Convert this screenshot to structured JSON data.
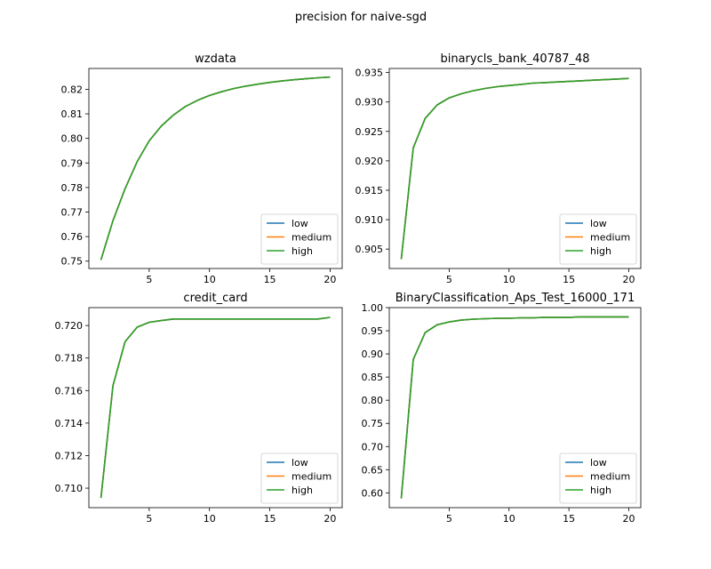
{
  "suptitle": "precision for naive-sgd",
  "series_colors": {
    "low": "#1f77b4",
    "medium": "#ff7f0e",
    "high": "#2ca02c"
  },
  "chart_data": [
    {
      "type": "line",
      "title": "wzdata",
      "x": [
        1,
        2,
        3,
        4,
        5,
        6,
        7,
        8,
        9,
        10,
        11,
        12,
        13,
        14,
        15,
        16,
        17,
        18,
        19,
        20
      ],
      "xlim": [
        0,
        21
      ],
      "xticks": [
        5,
        10,
        15,
        20
      ],
      "ylim": [
        0.747,
        0.8285
      ],
      "yticks": [
        0.75,
        0.76,
        0.77,
        0.78,
        0.79,
        0.8,
        0.81,
        0.82
      ],
      "ytick_labels": [
        "0.75",
        "0.76",
        "0.77",
        "0.78",
        "0.79",
        "0.80",
        "0.81",
        "0.82"
      ],
      "legend": "lower-right",
      "series": [
        {
          "name": "low",
          "values": [
            0.7505,
            0.7665,
            0.7795,
            0.7905,
            0.799,
            0.805,
            0.8095,
            0.813,
            0.8155,
            0.8175,
            0.819,
            0.8203,
            0.8213,
            0.8221,
            0.8228,
            0.8234,
            0.8239,
            0.8243,
            0.8247,
            0.825
          ]
        },
        {
          "name": "medium",
          "values": [
            0.7505,
            0.7665,
            0.7795,
            0.7905,
            0.799,
            0.805,
            0.8095,
            0.813,
            0.8155,
            0.8175,
            0.819,
            0.8203,
            0.8213,
            0.8221,
            0.8228,
            0.8234,
            0.8239,
            0.8243,
            0.8247,
            0.825
          ]
        },
        {
          "name": "high",
          "values": [
            0.7505,
            0.7665,
            0.7795,
            0.7905,
            0.799,
            0.805,
            0.8095,
            0.813,
            0.8155,
            0.8175,
            0.819,
            0.8203,
            0.8213,
            0.8221,
            0.8228,
            0.8234,
            0.8239,
            0.8243,
            0.8247,
            0.825
          ]
        }
      ]
    },
    {
      "type": "line",
      "title": "binarycls_bank_40787_48",
      "x": [
        1,
        2,
        3,
        4,
        5,
        6,
        7,
        8,
        9,
        10,
        11,
        12,
        13,
        14,
        15,
        16,
        17,
        18,
        19,
        20
      ],
      "xlim": [
        0,
        21
      ],
      "xticks": [
        5,
        10,
        15,
        20
      ],
      "ylim": [
        0.9017,
        0.9357
      ],
      "yticks": [
        0.905,
        0.91,
        0.915,
        0.92,
        0.925,
        0.93,
        0.935
      ],
      "ytick_labels": [
        "0.905",
        "0.910",
        "0.915",
        "0.920",
        "0.925",
        "0.930",
        "0.935"
      ],
      "legend": "lower-right",
      "series": [
        {
          "name": "low",
          "values": [
            0.9033,
            0.9222,
            0.9272,
            0.9295,
            0.9307,
            0.9314,
            0.9319,
            0.9323,
            0.9326,
            0.9328,
            0.933,
            0.9332,
            0.9333,
            0.9334,
            0.9335,
            0.9336,
            0.9337,
            0.9338,
            0.9339,
            0.934
          ]
        },
        {
          "name": "medium",
          "values": [
            0.9033,
            0.9222,
            0.9272,
            0.9295,
            0.9307,
            0.9314,
            0.9319,
            0.9323,
            0.9326,
            0.9328,
            0.933,
            0.9332,
            0.9333,
            0.9334,
            0.9335,
            0.9336,
            0.9337,
            0.9338,
            0.9339,
            0.934
          ]
        },
        {
          "name": "high",
          "values": [
            0.9033,
            0.9222,
            0.9272,
            0.9295,
            0.9307,
            0.9314,
            0.9319,
            0.9323,
            0.9326,
            0.9328,
            0.933,
            0.9332,
            0.9333,
            0.9334,
            0.9335,
            0.9336,
            0.9337,
            0.9338,
            0.9339,
            0.934
          ]
        }
      ]
    },
    {
      "type": "line",
      "title": "credit_card",
      "x": [
        1,
        2,
        3,
        4,
        5,
        6,
        7,
        8,
        9,
        10,
        11,
        12,
        13,
        14,
        15,
        16,
        17,
        18,
        19,
        20
      ],
      "xlim": [
        0,
        21
      ],
      "xticks": [
        5,
        10,
        15,
        20
      ],
      "ylim": [
        0.7088,
        0.7211
      ],
      "yticks": [
        0.71,
        0.712,
        0.714,
        0.716,
        0.718,
        0.72
      ],
      "ytick_labels": [
        "0.710",
        "0.712",
        "0.714",
        "0.716",
        "0.718",
        "0.720"
      ],
      "legend": "lower-right",
      "series": [
        {
          "name": "low",
          "values": [
            0.7094,
            0.7163,
            0.719,
            0.7199,
            0.7202,
            0.7203,
            0.7204,
            0.7204,
            0.7204,
            0.7204,
            0.7204,
            0.7204,
            0.7204,
            0.7204,
            0.7204,
            0.7204,
            0.7204,
            0.7204,
            0.7204,
            0.7205
          ]
        },
        {
          "name": "medium",
          "values": [
            0.7094,
            0.7163,
            0.719,
            0.7199,
            0.7202,
            0.7203,
            0.7204,
            0.7204,
            0.7204,
            0.7204,
            0.7204,
            0.7204,
            0.7204,
            0.7204,
            0.7204,
            0.7204,
            0.7204,
            0.7204,
            0.7204,
            0.7205
          ]
        },
        {
          "name": "high",
          "values": [
            0.7094,
            0.7163,
            0.719,
            0.7199,
            0.7202,
            0.7203,
            0.7204,
            0.7204,
            0.7204,
            0.7204,
            0.7204,
            0.7204,
            0.7204,
            0.7204,
            0.7204,
            0.7204,
            0.7204,
            0.7204,
            0.7204,
            0.7205
          ]
        }
      ]
    },
    {
      "type": "line",
      "title": "BinaryClassification_Aps_Test_16000_171",
      "x": [
        1,
        2,
        3,
        4,
        5,
        6,
        7,
        8,
        9,
        10,
        11,
        12,
        13,
        14,
        15,
        16,
        17,
        18,
        19,
        20
      ],
      "xlim": [
        0,
        21
      ],
      "xticks": [
        5,
        10,
        15,
        20
      ],
      "ylim": [
        0.568,
        1.0
      ],
      "yticks": [
        0.6,
        0.65,
        0.7,
        0.75,
        0.8,
        0.85,
        0.9,
        0.95,
        1.0
      ],
      "ytick_labels": [
        "0.60",
        "0.65",
        "0.70",
        "0.75",
        "0.80",
        "0.85",
        "0.90",
        "0.95",
        "1.00"
      ],
      "legend": "lower-right",
      "series": [
        {
          "name": "low",
          "values": [
            0.588,
            0.888,
            0.946,
            0.963,
            0.969,
            0.973,
            0.975,
            0.976,
            0.977,
            0.977,
            0.978,
            0.978,
            0.979,
            0.979,
            0.979,
            0.98,
            0.98,
            0.98,
            0.98,
            0.98
          ]
        },
        {
          "name": "medium",
          "values": [
            0.588,
            0.888,
            0.946,
            0.963,
            0.969,
            0.973,
            0.975,
            0.976,
            0.977,
            0.977,
            0.978,
            0.978,
            0.979,
            0.979,
            0.979,
            0.98,
            0.98,
            0.98,
            0.98,
            0.98
          ]
        },
        {
          "name": "high",
          "values": [
            0.588,
            0.888,
            0.946,
            0.963,
            0.969,
            0.973,
            0.975,
            0.976,
            0.977,
            0.977,
            0.978,
            0.978,
            0.979,
            0.979,
            0.979,
            0.98,
            0.98,
            0.98,
            0.98,
            0.98
          ]
        }
      ]
    }
  ]
}
